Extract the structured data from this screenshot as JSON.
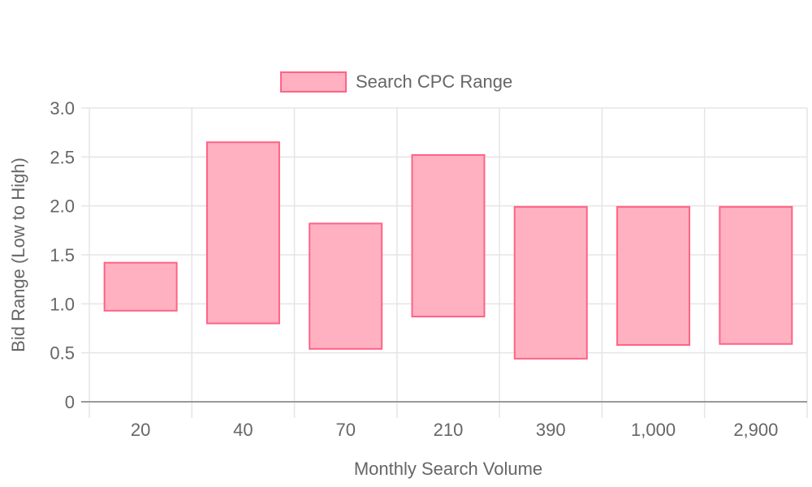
{
  "chart_data": {
    "type": "bar",
    "bar_style": "floating-range",
    "categories": [
      "20",
      "40",
      "70",
      "210",
      "390",
      "1,000",
      "2,900"
    ],
    "series": [
      {
        "name": "Search CPC Range",
        "ranges": [
          [
            0.93,
            1.42
          ],
          [
            0.8,
            2.65
          ],
          [
            0.54,
            1.82
          ],
          [
            0.87,
            2.52
          ],
          [
            0.44,
            1.99
          ],
          [
            0.58,
            1.99
          ],
          [
            0.59,
            1.99
          ]
        ],
        "fill_color": "#ffb1c1",
        "border_color": "#ff6384"
      }
    ],
    "xlabel": "Monthly Search Volume",
    "ylabel": "Bid Range (Low to High)",
    "ylim": [
      0,
      3
    ],
    "y_ticks": [
      {
        "value": 0,
        "label": "0"
      },
      {
        "value": 0.5,
        "label": "0.5"
      },
      {
        "value": 1,
        "label": "1.0"
      },
      {
        "value": 1.5,
        "label": "1.5"
      },
      {
        "value": 2,
        "label": "2.0"
      },
      {
        "value": 2.5,
        "label": "2.5"
      },
      {
        "value": 3,
        "label": "3.0"
      }
    ],
    "grid": true,
    "legend_position": "top-center",
    "colors": {
      "grid": "#e5e5e5",
      "axis": "#999999",
      "text": "#666666"
    }
  }
}
